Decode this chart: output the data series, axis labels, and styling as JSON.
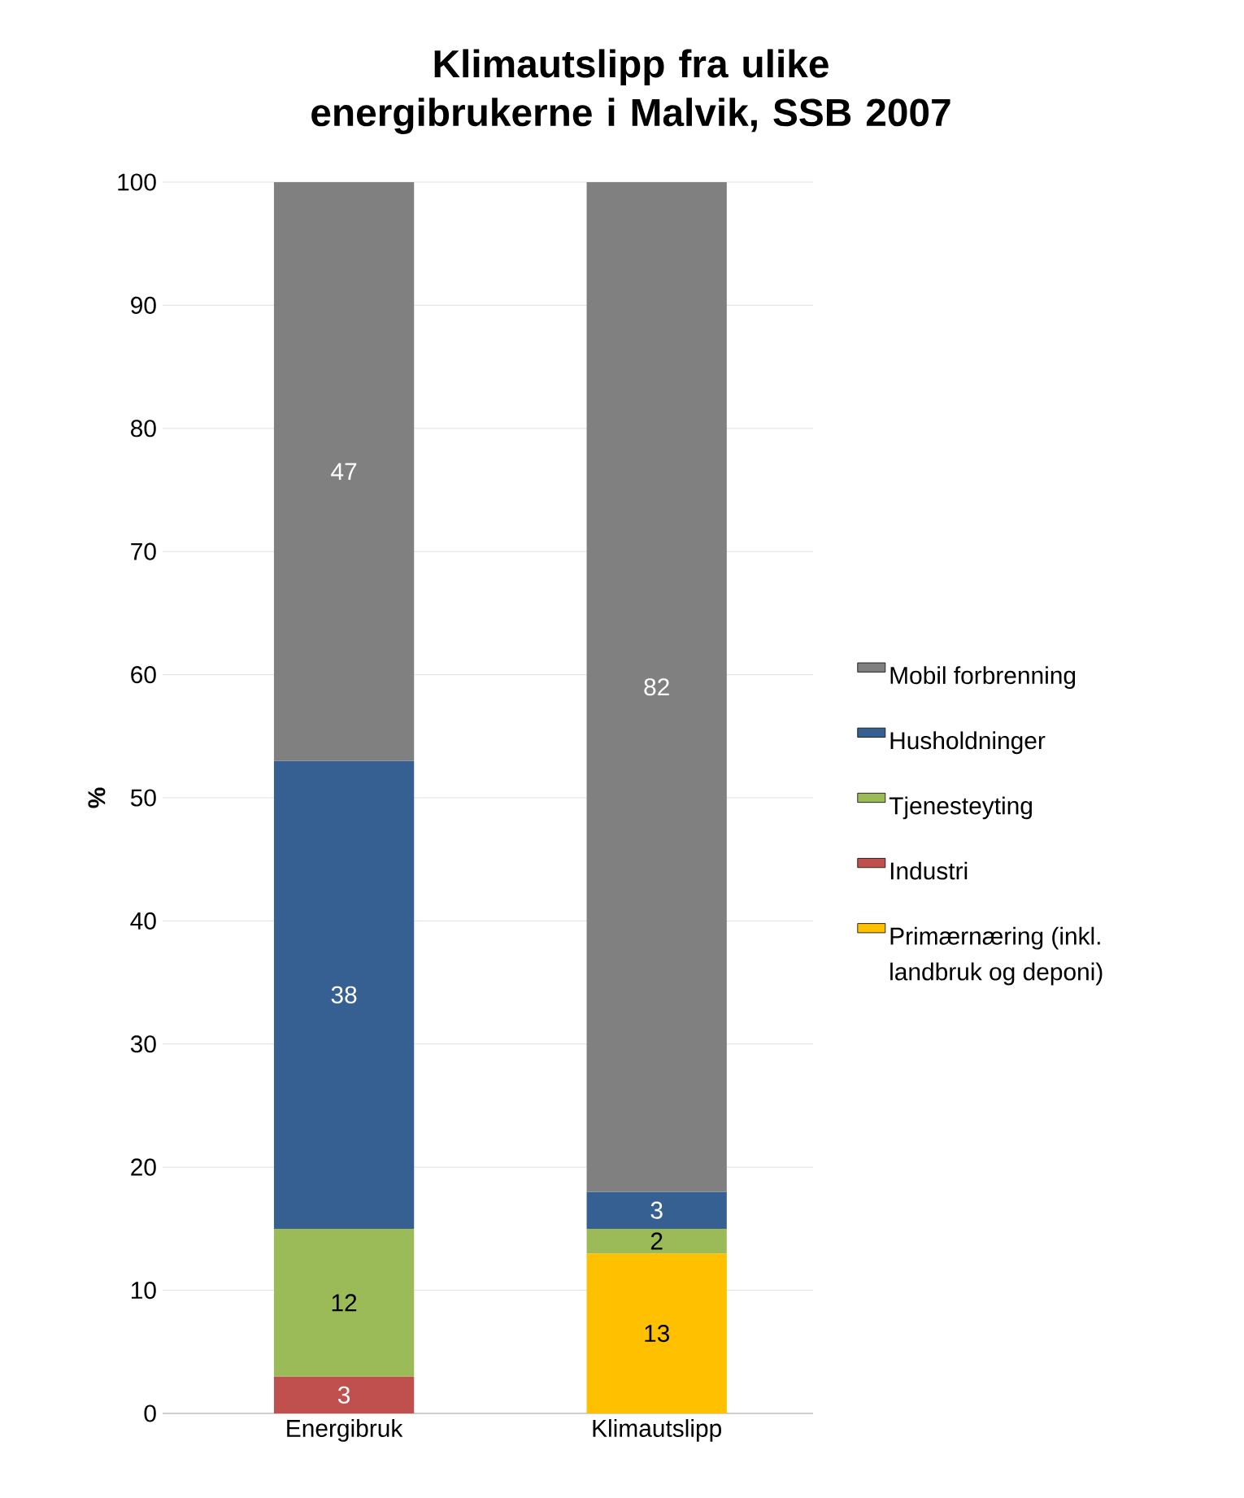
{
  "chart_data": {
    "type": "bar",
    "stacked": true,
    "title": "Klimautslipp fra ulike energibrukerne i Malvik, SSB 2007",
    "ylabel": "%",
    "categories": [
      "Energibruk",
      "Klimautslipp"
    ],
    "series": [
      {
        "name": "Primærnæring (inkl. landbruk og deponi)",
        "color": "#ffc000",
        "values": [
          0,
          13
        ],
        "value_labels": [
          null,
          "13"
        ]
      },
      {
        "name": "Industri",
        "color": "#c0504d",
        "values": [
          3,
          0
        ],
        "value_labels": [
          "3",
          null
        ]
      },
      {
        "name": "Tjenesteyting",
        "color": "#9bbb59",
        "values": [
          12,
          2
        ],
        "value_labels": [
          "12",
          "2"
        ]
      },
      {
        "name": "Husholdninger",
        "color": "#376092",
        "values": [
          38,
          3
        ],
        "value_labels": [
          "38",
          "3"
        ]
      },
      {
        "name": "Mobil forbrenning",
        "color": "#808080",
        "values": [
          47,
          82
        ],
        "value_labels": [
          "47",
          "82"
        ]
      }
    ],
    "ylim": [
      0,
      100
    ],
    "yticks": [
      0,
      10,
      20,
      30,
      40,
      50,
      60,
      70,
      80,
      90,
      100
    ],
    "grid": "y",
    "legend": "right"
  }
}
